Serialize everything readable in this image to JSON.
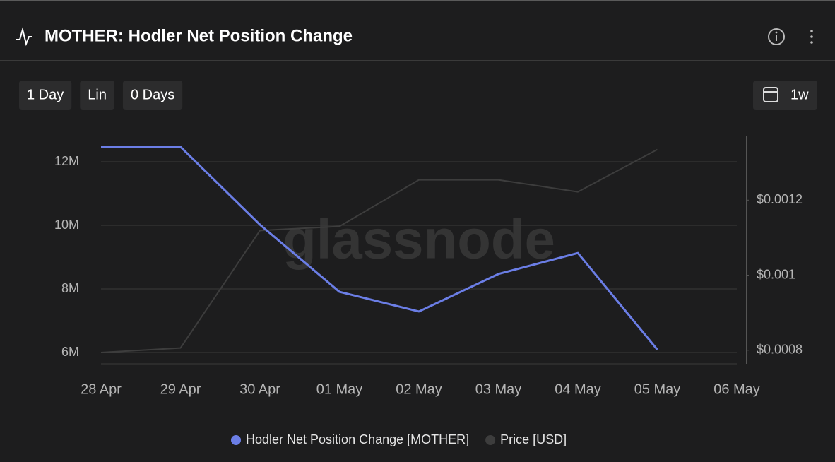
{
  "chart_data": {
    "type": "line",
    "title": "MOTHER: Hodler Net Position Change",
    "controls": [
      "1 Day",
      "Lin",
      "0 Days"
    ],
    "range_button": "1w",
    "watermark": "glassnode",
    "categories": [
      "28 Apr",
      "29 Apr",
      "30 Apr",
      "01 May",
      "02 May",
      "03 May",
      "04 May",
      "05 May",
      "06 May"
    ],
    "series": [
      {
        "name": "Hodler Net Position Change [MOTHER]",
        "color": "#6b7ee6",
        "values": [
          12470000,
          12470000,
          10020000,
          7910000,
          7290000,
          8470000,
          9130000,
          6090000,
          null
        ]
      },
      {
        "name": "Price [USD]",
        "color": "#3d3d3d",
        "axis": "y2",
        "values": [
          0.000794,
          0.000806,
          0.001119,
          0.00113,
          0.001254,
          0.001254,
          0.001222,
          0.001335,
          null
        ]
      }
    ],
    "ylim": [
      5600000,
      12800000
    ],
    "yticks": [
      {
        "value": 6000000,
        "label": "6M"
      },
      {
        "value": 8000000,
        "label": "8M"
      },
      {
        "value": 10000000,
        "label": "10M"
      },
      {
        "value": 12000000,
        "label": "12M"
      }
    ],
    "y2lim": [
      0.00076,
      0.00137
    ],
    "y2ticks": [
      {
        "value": 0.0008,
        "label": "$0.0008"
      },
      {
        "value": 0.001,
        "label": "$0.001"
      },
      {
        "value": 0.0012,
        "label": "$0.0012"
      }
    ],
    "grid": true
  }
}
